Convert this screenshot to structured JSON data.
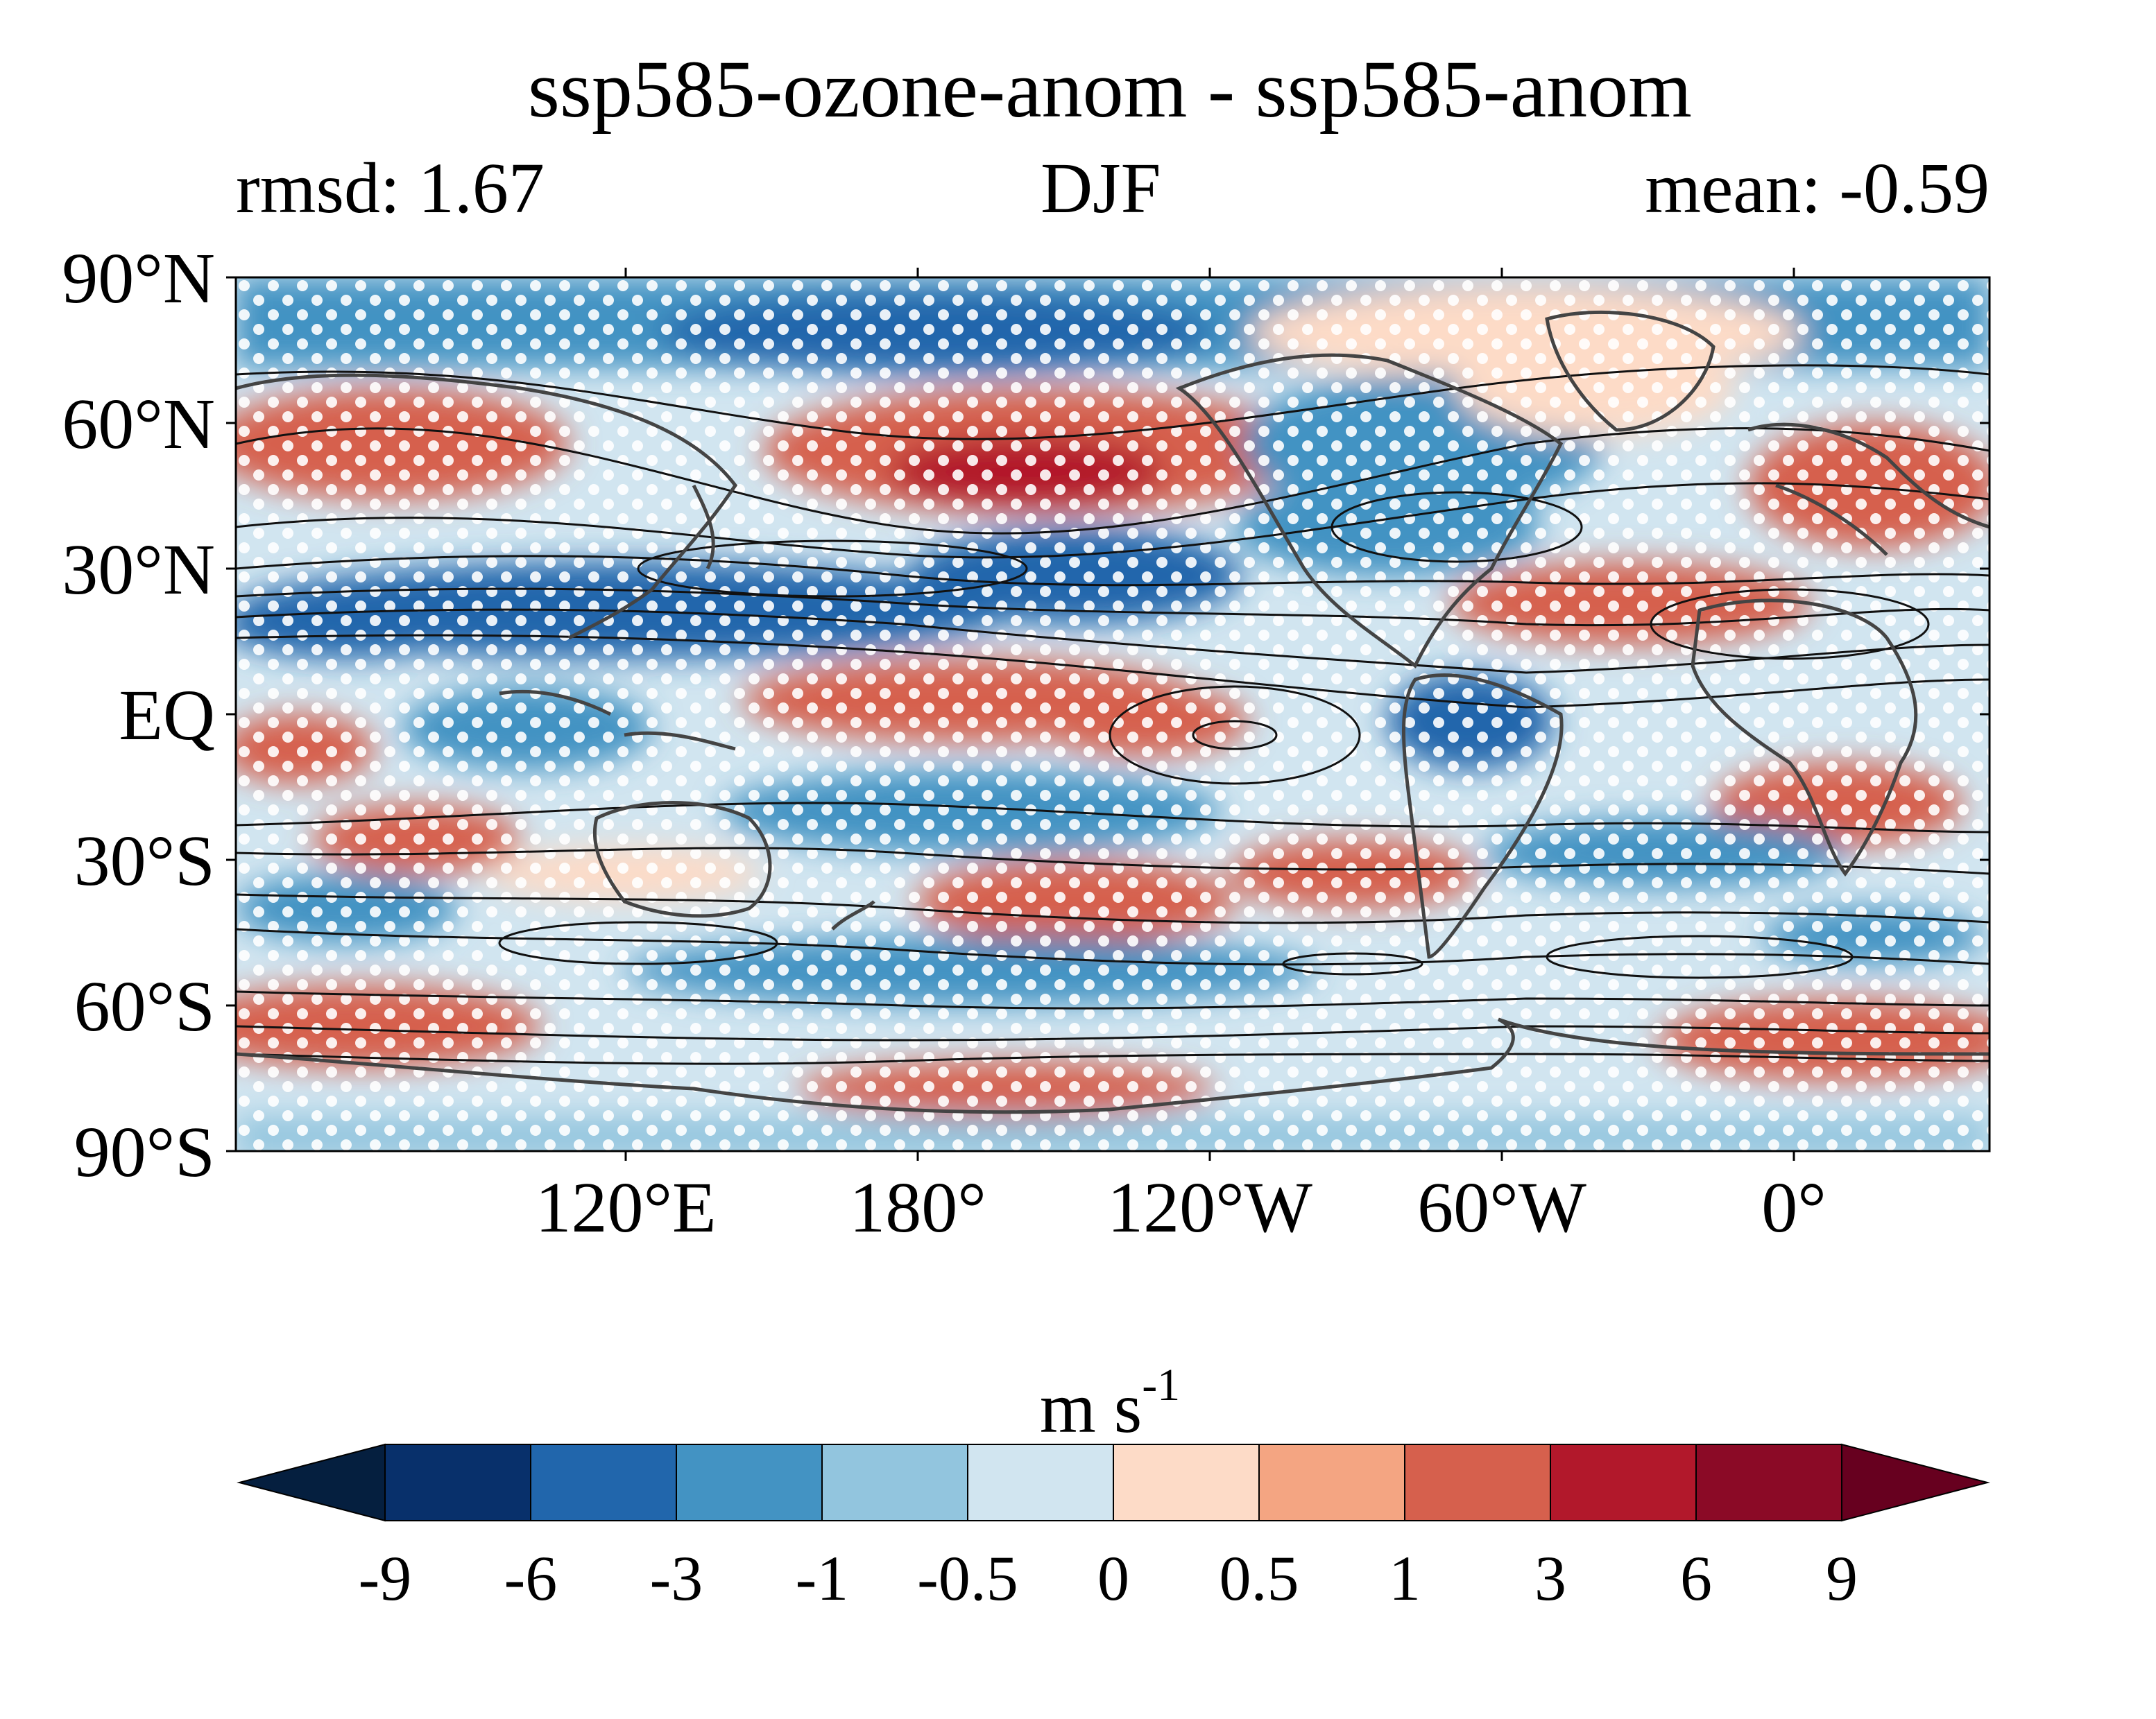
{
  "title": "ssp585-ozone-anom - ssp585-anom",
  "left_label": "rmsd: 1.67",
  "center_label": "DJF",
  "right_label": "mean: -0.59",
  "map": {
    "type": "filled-contour-map",
    "projection": "PlateCarree, central longitude 60°W shifted (lon range 30°E to 390°E)",
    "lon_range": [
      30,
      390
    ],
    "lat_range": [
      -90,
      90
    ],
    "overlays": [
      "coastlines (dark gray)",
      "black climatology contours",
      "white stippling (significance)"
    ],
    "y_tick_labels": [
      "90°N",
      "60°N",
      "30°N",
      "EQ",
      "30°S",
      "60°S",
      "90°S"
    ],
    "x_tick_labels": [
      "120°E",
      "180°",
      "120°W",
      "60°W",
      "0°"
    ]
  },
  "colorbar": {
    "units_base": "m s",
    "units_exp": "-1",
    "levels": [
      "-9",
      "-6",
      "-3",
      "-1",
      "-0.5",
      "0",
      "0.5",
      "1",
      "3",
      "6",
      "9"
    ],
    "colors": [
      "#08306b",
      "#2166ac",
      "#4393c3",
      "#92c5de",
      "#d1e5f0",
      "#fddbc7",
      "#f4a582",
      "#d6604d",
      "#b2182b",
      "#8b0a26"
    ],
    "under_color": "#051f3f",
    "over_color": "#67001f",
    "extend": "both"
  }
}
